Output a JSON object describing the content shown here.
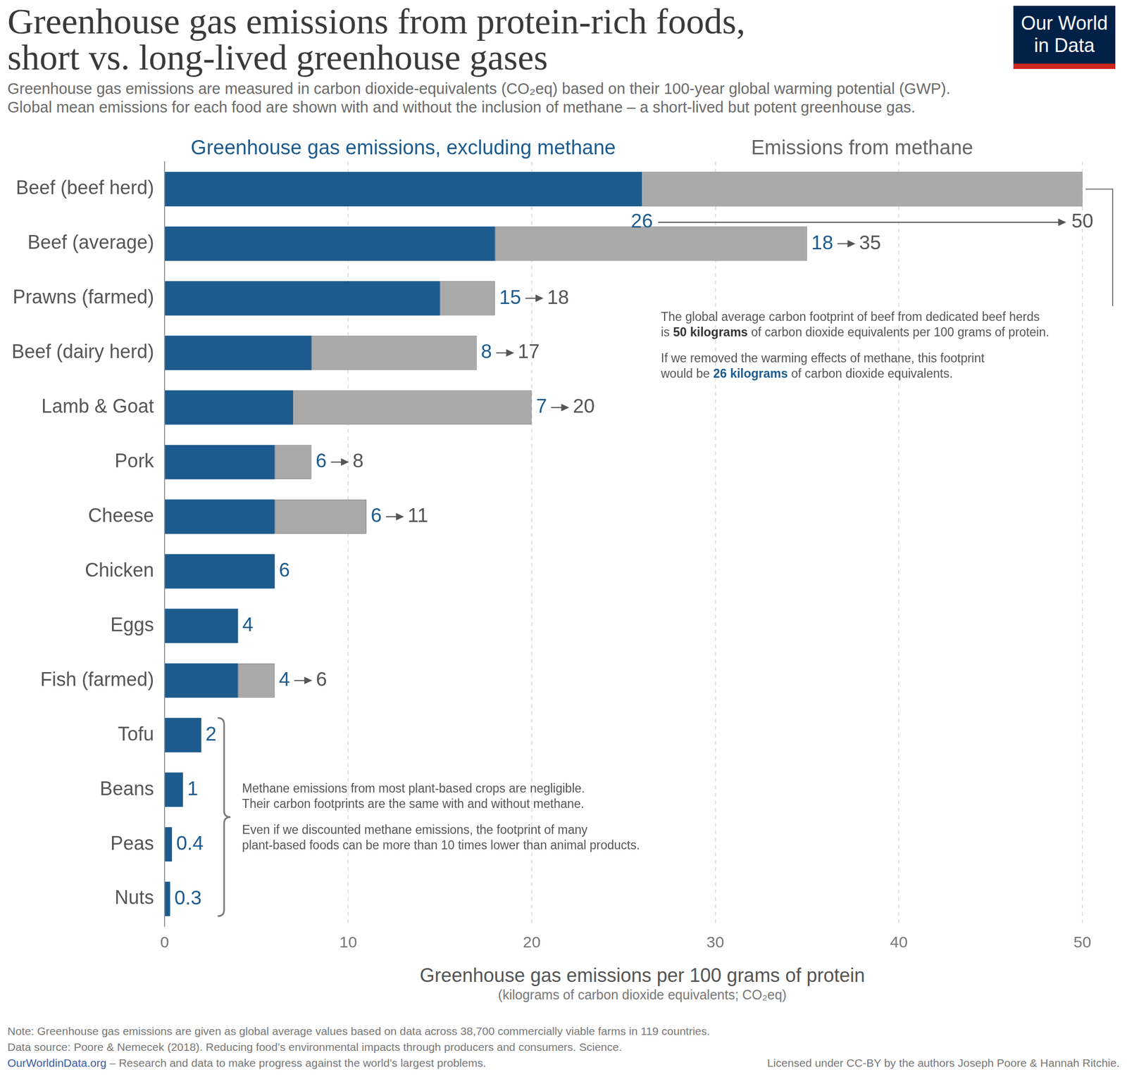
{
  "chart_data": {
    "type": "bar",
    "orientation": "horizontal",
    "stacked": true,
    "title": [
      "Greenhouse gas emissions from protein-rich foods,",
      "short vs. long-lived greenhouse gases"
    ],
    "subtitle": [
      "Greenhouse gas emissions are measured in carbon dioxide-equivalents (CO₂eq) based on their 100-year global warming potential (GWP).",
      "Global mean emissions for each food are shown with and without the inclusion of methane – a short-lived but potent greenhouse gas."
    ],
    "categories": [
      "Beef (beef herd)",
      "Beef (average)",
      "Prawns (farmed)",
      "Beef (dairy herd)",
      "Lamb & Goat",
      "Pork",
      "Cheese",
      "Chicken",
      "Eggs",
      "Fish (farmed)",
      "Tofu",
      "Beans",
      "Peas",
      "Nuts"
    ],
    "series": [
      {
        "name": "Greenhouse gas emissions, excluding methane",
        "color": "#1d5b8e",
        "values": [
          26,
          18,
          15,
          8,
          7,
          6,
          6,
          6,
          4,
          4,
          2,
          1,
          0.4,
          0.3
        ]
      },
      {
        "name": "Emissions from methane",
        "color": "#aaaaaa",
        "values": [
          24,
          17,
          3,
          9,
          13,
          2,
          5,
          null,
          null,
          2,
          null,
          null,
          null,
          null
        ],
        "totals": [
          50,
          35,
          18,
          17,
          20,
          8,
          11,
          null,
          null,
          6,
          null,
          null,
          null,
          null
        ]
      }
    ],
    "xlim": [
      0,
      50
    ],
    "xticks": [
      0,
      10,
      20,
      30,
      40,
      50
    ],
    "xlabel": "Greenhouse gas emissions per 100 grams of protein",
    "xlabel_subtitle": "(kilograms of carbon dioxide equivalents; CO₂eq)",
    "grid": true,
    "data_labels": true,
    "annotations": [
      {
        "categories": [
          "Beef (beef herd)"
        ],
        "paragraphs": [
          [
            [
              "The global average carbon footprint of beef from dedicated beef herds"
            ],
            [
              "is ",
              "50 kilograms",
              " of carbon dioxide equivalents per 100 grams of protein."
            ]
          ],
          [
            [
              "If we removed the warming effects of methane, this footprint"
            ],
            [
              "would be ",
              "26 kilograms",
              " of carbon dioxide equivalents."
            ]
          ]
        ]
      },
      {
        "categories": [
          "Tofu",
          "Beans",
          "Peas",
          "Nuts"
        ],
        "paragraphs": [
          [
            [
              "Methane emissions from most plant-based crops are negligible."
            ],
            [
              "Their carbon footprints are the same with and without methane."
            ]
          ],
          [
            [
              "Even if we discounted methane emissions, the footprint of many"
            ],
            [
              "plant-based foods can be more than 10 times lower than animal products."
            ]
          ]
        ]
      }
    ],
    "note": "Note: Greenhouse gas emissions are given as global average values based on data across 38,700 commercially viable farms in 119 countries.",
    "source": "Data source: Poore & Nemecek (2018). Reducing food’s environmental impacts through producers and consumers. Science.",
    "site": "OurWorldinData.org",
    "site_tagline": "– Research and data to make progress against the world’s largest problems.",
    "license": "Licensed under CC-BY by the authors Joseph Poore & Hannah Ritchie.",
    "logo": [
      "Our World",
      "in Data"
    ]
  }
}
